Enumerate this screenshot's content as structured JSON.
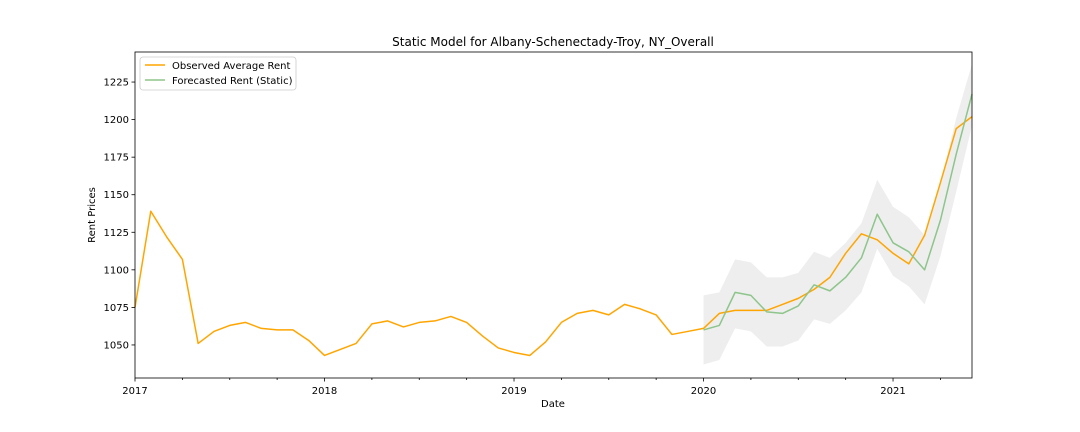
{
  "chart_data": {
    "type": "line",
    "title": "Static Model for Albany-Schenectady-Troy, NY_Overall",
    "xlabel": "Date",
    "ylabel": "Rent Prices",
    "xlim": [
      "2017-01",
      "2021-06"
    ],
    "ylim": [
      1028,
      1245
    ],
    "x_ticks": [
      "2017",
      "2018",
      "2019",
      "2020",
      "2021"
    ],
    "y_ticks": [
      1050,
      1075,
      1100,
      1125,
      1150,
      1175,
      1200,
      1225
    ],
    "legend": "upper-left",
    "grid": false,
    "series": [
      {
        "name": "Observed Average Rent",
        "color": "#ffa500",
        "dates": [
          "2017-01",
          "2017-02",
          "2017-03",
          "2017-04",
          "2017-05",
          "2017-06",
          "2017-07",
          "2017-08",
          "2017-09",
          "2017-10",
          "2017-11",
          "2017-12",
          "2018-01",
          "2018-02",
          "2018-03",
          "2018-04",
          "2018-05",
          "2018-06",
          "2018-07",
          "2018-08",
          "2018-09",
          "2018-10",
          "2018-11",
          "2018-12",
          "2019-01",
          "2019-02",
          "2019-03",
          "2019-04",
          "2019-05",
          "2019-06",
          "2019-07",
          "2019-08",
          "2019-09",
          "2019-10",
          "2019-11",
          "2019-12",
          "2020-01",
          "2020-02",
          "2020-03",
          "2020-04",
          "2020-05",
          "2020-06",
          "2020-07",
          "2020-08",
          "2020-09",
          "2020-10",
          "2020-11",
          "2020-12",
          "2021-01",
          "2021-02",
          "2021-03",
          "2021-04",
          "2021-05",
          "2021-06"
        ],
        "values": [
          1075,
          1139,
          1122,
          1107,
          1051,
          1059,
          1063,
          1065,
          1061,
          1060,
          1060,
          1053,
          1043,
          1047,
          1051,
          1064,
          1066,
          1062,
          1065,
          1066,
          1069,
          1065,
          1056,
          1048,
          1045,
          1043,
          1052,
          1065,
          1071,
          1073,
          1070,
          1077,
          1074,
          1070,
          1057,
          1059,
          1061,
          1071,
          1073,
          1073,
          1073,
          1077,
          1081,
          1087,
          1095,
          1111,
          1124,
          1120,
          1111,
          1104,
          1123,
          1158,
          1194,
          1202
        ]
      },
      {
        "name": "Forecasted Rent (Static)",
        "color": "#8dc58b",
        "dates": [
          "2020-01",
          "2020-02",
          "2020-03",
          "2020-04",
          "2020-05",
          "2020-06",
          "2020-07",
          "2020-08",
          "2020-09",
          "2020-10",
          "2020-11",
          "2020-12",
          "2021-01",
          "2021-02",
          "2021-03",
          "2021-04",
          "2021-05",
          "2021-06"
        ],
        "values": [
          1060,
          1063,
          1085,
          1083,
          1072,
          1071,
          1076,
          1090,
          1086,
          1095,
          1108,
          1137,
          1118,
          1112,
          1100,
          1133,
          1177,
          1217
        ],
        "lower": [
          1037,
          1040,
          1061,
          1059,
          1049,
          1049,
          1053,
          1067,
          1064,
          1073,
          1085,
          1114,
          1096,
          1089,
          1077,
          1109,
          1152,
          1196
        ],
        "upper": [
          1083,
          1085,
          1107,
          1105,
          1095,
          1095,
          1098,
          1112,
          1108,
          1118,
          1131,
          1160,
          1142,
          1135,
          1123,
          1157,
          1201,
          1237
        ]
      }
    ]
  }
}
